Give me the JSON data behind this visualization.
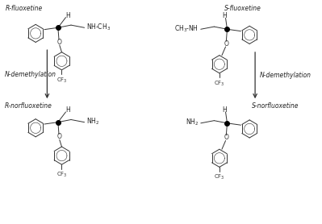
{
  "bg_color": "#ffffff",
  "line_color": "#333333",
  "text_color": "#222222",
  "label_fontsize": 5.5,
  "small_fontsize": 5.0,
  "figsize": [
    3.99,
    2.78
  ],
  "dpi": 100,
  "xlim": [
    0,
    10
  ],
  "ylim": [
    0,
    7
  ]
}
